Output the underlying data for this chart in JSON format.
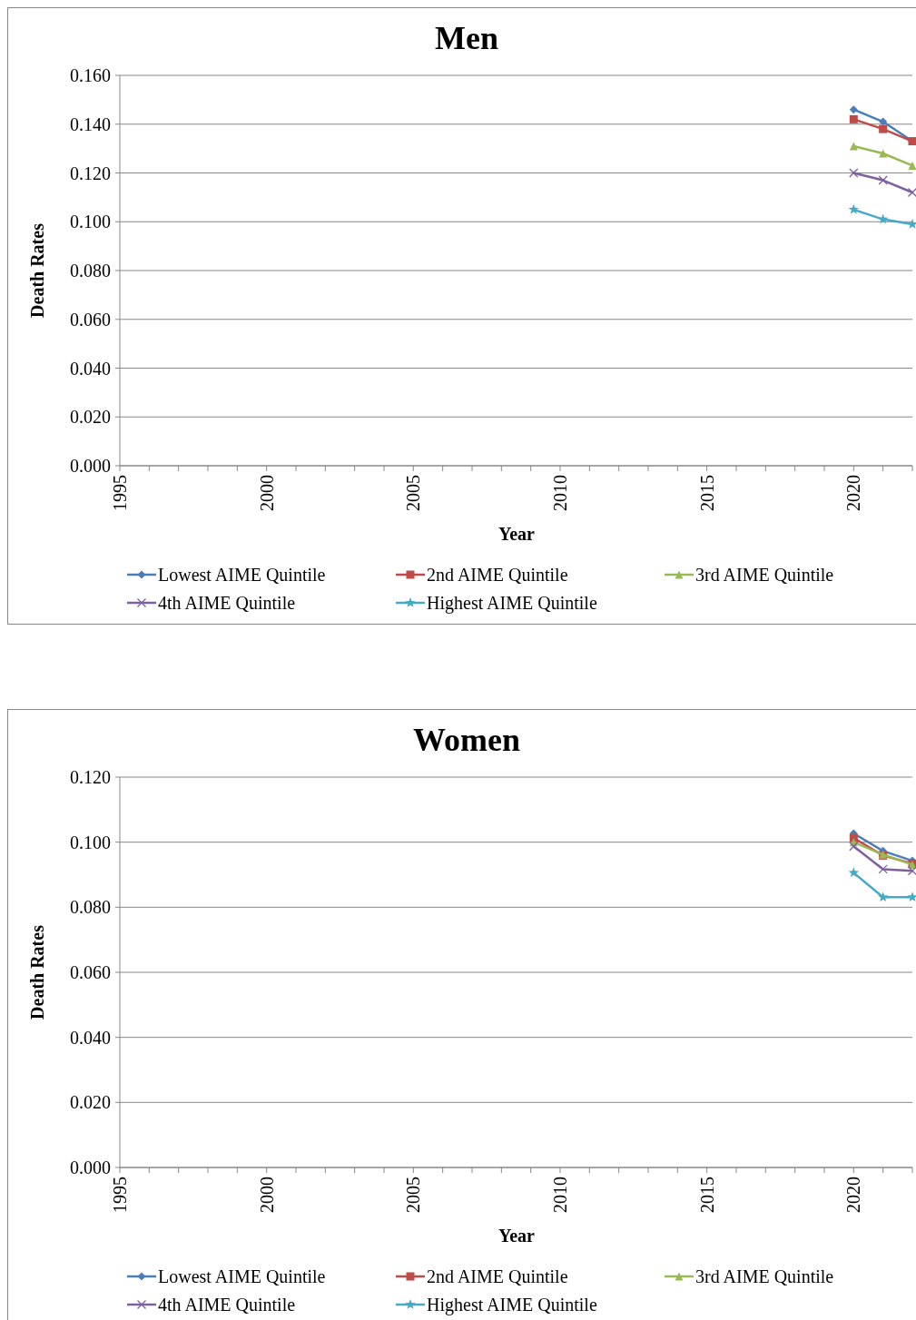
{
  "chart_data": [
    {
      "type": "line",
      "title": "Men",
      "xlabel": "Year",
      "ylabel": "Death Rates",
      "x": [
        2020,
        2021,
        2022
      ],
      "xlim": [
        1995,
        2022
      ],
      "xticks": [
        1995,
        {
          "value": 1996,
          "label": null
        },
        {
          "value": 1997,
          "label": null
        },
        {
          "value": 1998,
          "label": null
        },
        {
          "value": 1999,
          "label": null
        },
        2000,
        {
          "value": 2001,
          "label": null
        },
        {
          "value": 2002,
          "label": null
        },
        {
          "value": 2003,
          "label": null
        },
        {
          "value": 2004,
          "label": null
        },
        2005,
        {
          "value": 2006,
          "label": null
        },
        {
          "value": 2007,
          "label": null
        },
        {
          "value": 2008,
          "label": null
        },
        {
          "value": 2009,
          "label": null
        },
        2010,
        {
          "value": 2011,
          "label": null
        },
        {
          "value": 2012,
          "label": null
        },
        {
          "value": 2013,
          "label": null
        },
        {
          "value": 2014,
          "label": null
        },
        2015,
        {
          "value": 2016,
          "label": null
        },
        {
          "value": 2017,
          "label": null
        },
        {
          "value": 2018,
          "label": null
        },
        {
          "value": 2019,
          "label": null
        },
        2020,
        {
          "value": 2021,
          "label": null
        },
        {
          "value": 2022,
          "label": null
        }
      ],
      "ylim": [
        0,
        0.16
      ],
      "yticks": [
        {
          "value": 0,
          "label": "0.000"
        },
        {
          "value": 0.02,
          "label": "0.020"
        },
        {
          "value": 0.04,
          "label": "0.040"
        },
        {
          "value": 0.06,
          "label": "0.060"
        },
        {
          "value": 0.08,
          "label": "0.080"
        },
        {
          "value": 0.1,
          "label": "0.100"
        },
        {
          "value": 0.12,
          "label": "0.120"
        },
        {
          "value": 0.14,
          "label": "0.140"
        },
        {
          "value": 0.16,
          "label": "0.160"
        }
      ],
      "grid": "y",
      "legend": "bottom",
      "line_style": "solid",
      "series": [
        {
          "name": "Lowest AIME Quintile",
          "color": "#4a7ebb",
          "marker": "diamond",
          "values": [
            0.146,
            0.141,
            0.133
          ]
        },
        {
          "name": "2nd AIME Quintile",
          "color": "#be4b48",
          "marker": "square",
          "values": [
            0.142,
            0.138,
            0.133
          ]
        },
        {
          "name": "3rd AIME Quintile",
          "color": "#98b954",
          "marker": "triangle",
          "values": [
            0.131,
            0.128,
            0.123
          ]
        },
        {
          "name": "4th AIME Quintile",
          "color": "#7d60a0",
          "marker": "cross",
          "values": [
            0.12,
            0.117,
            0.112
          ]
        },
        {
          "name": "Highest AIME Quintile",
          "color": "#46aac5",
          "marker": "star",
          "values": [
            0.105,
            0.101,
            0.099
          ]
        }
      ]
    },
    {
      "type": "line",
      "title": "Women",
      "xlabel": "Year",
      "ylabel": "Death Rates",
      "x": [
        2020,
        2021,
        2022
      ],
      "xlim": [
        1995,
        2022
      ],
      "xticks": [
        1995,
        {
          "value": 1996,
          "label": null
        },
        {
          "value": 1997,
          "label": null
        },
        {
          "value": 1998,
          "label": null
        },
        {
          "value": 1999,
          "label": null
        },
        2000,
        {
          "value": 2001,
          "label": null
        },
        {
          "value": 2002,
          "label": null
        },
        {
          "value": 2003,
          "label": null
        },
        {
          "value": 2004,
          "label": null
        },
        2005,
        {
          "value": 2006,
          "label": null
        },
        {
          "value": 2007,
          "label": null
        },
        {
          "value": 2008,
          "label": null
        },
        {
          "value": 2009,
          "label": null
        },
        2010,
        {
          "value": 2011,
          "label": null
        },
        {
          "value": 2012,
          "label": null
        },
        {
          "value": 2013,
          "label": null
        },
        {
          "value": 2014,
          "label": null
        },
        2015,
        {
          "value": 2016,
          "label": null
        },
        {
          "value": 2017,
          "label": null
        },
        {
          "value": 2018,
          "label": null
        },
        {
          "value": 2019,
          "label": null
        },
        2020,
        {
          "value": 2021,
          "label": null
        },
        {
          "value": 2022,
          "label": null
        }
      ],
      "ylim": [
        0,
        0.12
      ],
      "yticks": [
        {
          "value": 0,
          "label": "0.000"
        },
        {
          "value": 0.02,
          "label": "0.020"
        },
        {
          "value": 0.04,
          "label": "0.040"
        },
        {
          "value": 0.06,
          "label": "0.060"
        },
        {
          "value": 0.08,
          "label": "0.080"
        },
        {
          "value": 0.1,
          "label": "0.100"
        },
        {
          "value": 0.12,
          "label": "0.120"
        }
      ],
      "grid": "y",
      "legend": "bottom",
      "line_style": "solid",
      "series": [
        {
          "name": "Lowest AIME Quintile",
          "color": "#4a7ebb",
          "marker": "diamond",
          "values": [
            0.1027,
            0.0973,
            0.0943
          ]
        },
        {
          "name": "2nd AIME Quintile",
          "color": "#be4b48",
          "marker": "square",
          "values": [
            0.1013,
            0.0959,
            0.0934
          ]
        },
        {
          "name": "3rd AIME Quintile",
          "color": "#98b954",
          "marker": "triangle",
          "values": [
            0.1,
            0.0962,
            0.0931
          ]
        },
        {
          "name": "4th AIME Quintile",
          "color": "#7d60a0",
          "marker": "cross",
          "values": [
            0.0987,
            0.0917,
            0.0912
          ]
        },
        {
          "name": "Highest AIME Quintile",
          "color": "#46aac5",
          "marker": "star",
          "values": [
            0.0906,
            0.0831,
            0.0831
          ]
        }
      ]
    }
  ]
}
